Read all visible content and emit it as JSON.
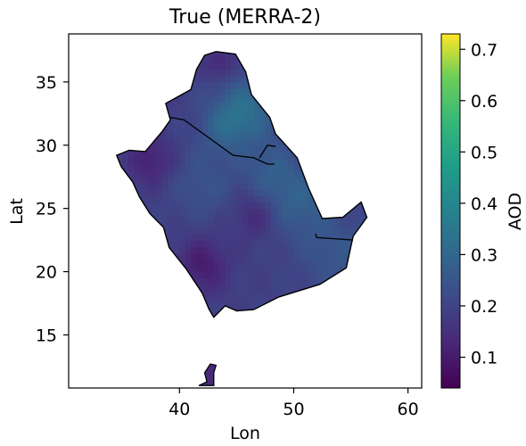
{
  "chart_data": {
    "type": "heatmap",
    "title": "True (MERRA-2)",
    "xlabel": "Lon",
    "ylabel": "Lat",
    "xlim": [
      30.3,
      61.2
    ],
    "ylim": [
      10.8,
      38.8
    ],
    "xticks": [
      40,
      50,
      60
    ],
    "yticks": [
      15,
      20,
      25,
      30,
      35
    ],
    "colorbar": {
      "label": "AOD",
      "range": [
        0.04,
        0.73
      ],
      "ticks": [
        "0.1",
        "0.2",
        "0.3",
        "0.4",
        "0.5",
        "0.6",
        "0.7"
      ],
      "tick_values": [
        0.1,
        0.2,
        0.3,
        0.4,
        0.5,
        0.6,
        0.7
      ],
      "colormap": "viridis"
    },
    "region_outline": [
      [
        43.2,
        37.4
      ],
      [
        44.9,
        37.2
      ],
      [
        45.8,
        35.8
      ],
      [
        46.3,
        34.0
      ],
      [
        47.9,
        32.2
      ],
      [
        48.4,
        30.9
      ],
      [
        49.0,
        30.3
      ],
      [
        50.3,
        29.0
      ],
      [
        51.3,
        26.6
      ],
      [
        52.5,
        24.2
      ],
      [
        54.3,
        24.3
      ],
      [
        55.9,
        25.5
      ],
      [
        56.4,
        24.3
      ],
      [
        55.2,
        22.8
      ],
      [
        54.6,
        20.3
      ],
      [
        52.3,
        19.0
      ],
      [
        48.7,
        18.0
      ],
      [
        46.5,
        17.0
      ],
      [
        45.0,
        16.9
      ],
      [
        44.0,
        17.3
      ],
      [
        43.0,
        16.4
      ],
      [
        42.6,
        17.0
      ],
      [
        42.0,
        18.3
      ],
      [
        40.6,
        20.2
      ],
      [
        39.1,
        21.9
      ],
      [
        38.6,
        23.5
      ],
      [
        37.4,
        24.6
      ],
      [
        36.5,
        25.9
      ],
      [
        35.9,
        27.1
      ],
      [
        34.9,
        28.3
      ],
      [
        34.5,
        29.2
      ],
      [
        35.6,
        29.6
      ],
      [
        37.0,
        29.5
      ],
      [
        38.5,
        31.1
      ],
      [
        39.2,
        32.0
      ],
      [
        38.8,
        33.3
      ],
      [
        41.0,
        34.4
      ],
      [
        41.5,
        36.0
      ],
      [
        42.2,
        37.1
      ]
    ],
    "borders": [
      [
        [
          39.2,
          32.2
        ],
        [
          40.4,
          32.0
        ],
        [
          44.7,
          29.2
        ],
        [
          46.5,
          29.0
        ],
        [
          47.7,
          28.5
        ],
        [
          48.3,
          28.5
        ]
      ],
      [
        [
          47.0,
          29.0
        ],
        [
          47.7,
          30.0
        ],
        [
          48.4,
          29.9
        ]
      ],
      [
        [
          51.9,
          23.0
        ],
        [
          52.0,
          22.7
        ],
        [
          55.2,
          22.5
        ]
      ]
    ],
    "aod_blobs": [
      {
        "lon": 46.0,
        "lat": 33.0,
        "value": 0.3,
        "spread": 2.6
      },
      {
        "lon": 44.0,
        "lat": 31.5,
        "value": 0.27,
        "spread": 2.2
      },
      {
        "lon": 50.5,
        "lat": 25.5,
        "value": 0.27,
        "spread": 2.6
      },
      {
        "lon": 53.5,
        "lat": 21.5,
        "value": 0.25,
        "spread": 3.0
      },
      {
        "lon": 42.0,
        "lat": 27.0,
        "value": 0.24,
        "spread": 2.8
      },
      {
        "lon": 48.0,
        "lat": 28.0,
        "value": 0.26,
        "spread": 2.5
      },
      {
        "lon": 46.5,
        "lat": 24.5,
        "value": 0.13,
        "spread": 1.8
      },
      {
        "lon": 42.0,
        "lat": 20.5,
        "value": 0.1,
        "spread": 2.2
      },
      {
        "lon": 37.5,
        "lat": 28.8,
        "value": 0.11,
        "spread": 2.0
      },
      {
        "lon": 43.5,
        "lat": 36.5,
        "value": 0.12,
        "spread": 1.3
      }
    ],
    "aod_background": 0.19,
    "islands": [
      [
        [
          43.0,
          12.0
        ],
        [
          43.2,
          12.6
        ],
        [
          42.7,
          12.7
        ],
        [
          42.2,
          12.0
        ],
        [
          42.4,
          11.3
        ],
        [
          41.7,
          11.0
        ],
        [
          43.0,
          11.0
        ]
      ]
    ]
  }
}
